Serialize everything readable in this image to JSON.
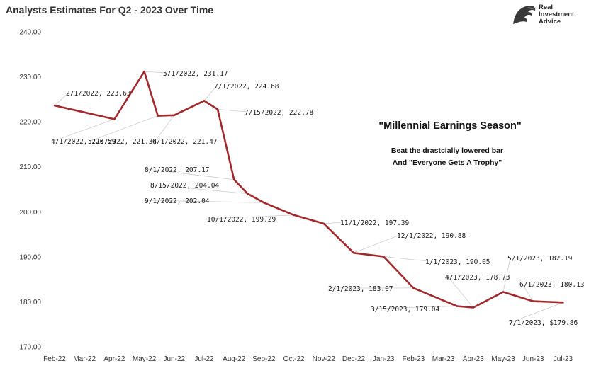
{
  "header": {
    "title": "Analysts Estimates For Q2 - 2023 Over Time"
  },
  "logo": {
    "icon": "eagle-head-icon",
    "line1": "Real",
    "line2": "Investment",
    "line3": "Advice"
  },
  "callout": {
    "headline": "\"Millennial Earnings Season\"",
    "line1": "Beat the drastcially lowered bar",
    "line2": "And \"Everyone Gets A Trophy\""
  },
  "colors": {
    "series": "#a3282b",
    "leader": "#cccccc",
    "text": "#333333"
  },
  "chart_data": {
    "type": "line",
    "title": "Analysts Estimates For Q2 - 2023 Over Time",
    "xlabel": "",
    "ylabel": "",
    "ylim": [
      170,
      240
    ],
    "yticks": [
      "170.00",
      "180.00",
      "190.00",
      "200.00",
      "210.00",
      "220.00",
      "230.00",
      "240.00"
    ],
    "xticks": [
      "Feb-22",
      "Mar-22",
      "Apr-22",
      "May-22",
      "Jun-22",
      "Jul-22",
      "Aug-22",
      "Sep-22",
      "Oct-22",
      "Nov-22",
      "Dec-22",
      "Jan-23",
      "Feb-23",
      "Mar-23",
      "Apr-23",
      "May-23",
      "Jun-23",
      "Jul-23"
    ],
    "grid": false,
    "legend": "none",
    "series": [
      {
        "points": [
          {
            "x": "2022-02-01",
            "y": 223.63
          },
          {
            "x": "2022-04-01",
            "y": 220.59
          },
          {
            "x": "2022-05-01",
            "y": 231.17
          },
          {
            "x": "2022-05-15",
            "y": 221.34
          },
          {
            "x": "2022-06-01",
            "y": 221.47
          },
          {
            "x": "2022-07-01",
            "y": 224.68
          },
          {
            "x": "2022-07-15",
            "y": 222.78
          },
          {
            "x": "2022-08-01",
            "y": 207.17
          },
          {
            "x": "2022-08-15",
            "y": 204.04
          },
          {
            "x": "2022-09-01",
            "y": 202.04
          },
          {
            "x": "2022-10-01",
            "y": 199.29
          },
          {
            "x": "2022-11-01",
            "y": 197.39
          },
          {
            "x": "2022-12-01",
            "y": 190.88
          },
          {
            "x": "2023-01-01",
            "y": 190.05
          },
          {
            "x": "2023-02-01",
            "y": 183.07
          },
          {
            "x": "2023-03-15",
            "y": 179.04
          },
          {
            "x": "2023-04-01",
            "y": 178.73
          },
          {
            "x": "2023-05-01",
            "y": 182.19
          },
          {
            "x": "2023-06-01",
            "y": 180.13
          },
          {
            "x": "2023-07-01",
            "y": 179.86
          }
        ]
      }
    ],
    "annotations": [
      {
        "text": "2/1/2022,  223.63"
      },
      {
        "text": "4/1/2022,  220.59"
      },
      {
        "text": "5/1/2022, 231.17"
      },
      {
        "text": "5/15/2022, 221.34"
      },
      {
        "text": "6/1/2022,  221.47"
      },
      {
        "text": "7/1/2022,  224.68"
      },
      {
        "text": "7/15/2022, 222.78"
      },
      {
        "text": "8/1/2022,  207.17"
      },
      {
        "text": "8/15/2022,  204.04"
      },
      {
        "text": "9/1/2022,  202.04"
      },
      {
        "text": "10/1/2022,  199.29"
      },
      {
        "text": "11/1/2022,  197.39"
      },
      {
        "text": "12/1/2022,  190.88"
      },
      {
        "text": "1/1/2023,  190.05"
      },
      {
        "text": "2/1/2023,  183.07"
      },
      {
        "text": "3/15/2023,  179.04"
      },
      {
        "text": "4/1/2023,  178.73"
      },
      {
        "text": "5/1/2023,  182.19"
      },
      {
        "text": "6/1/2023,  180.13"
      },
      {
        "text": "7/1/2023, $179.86"
      }
    ]
  }
}
